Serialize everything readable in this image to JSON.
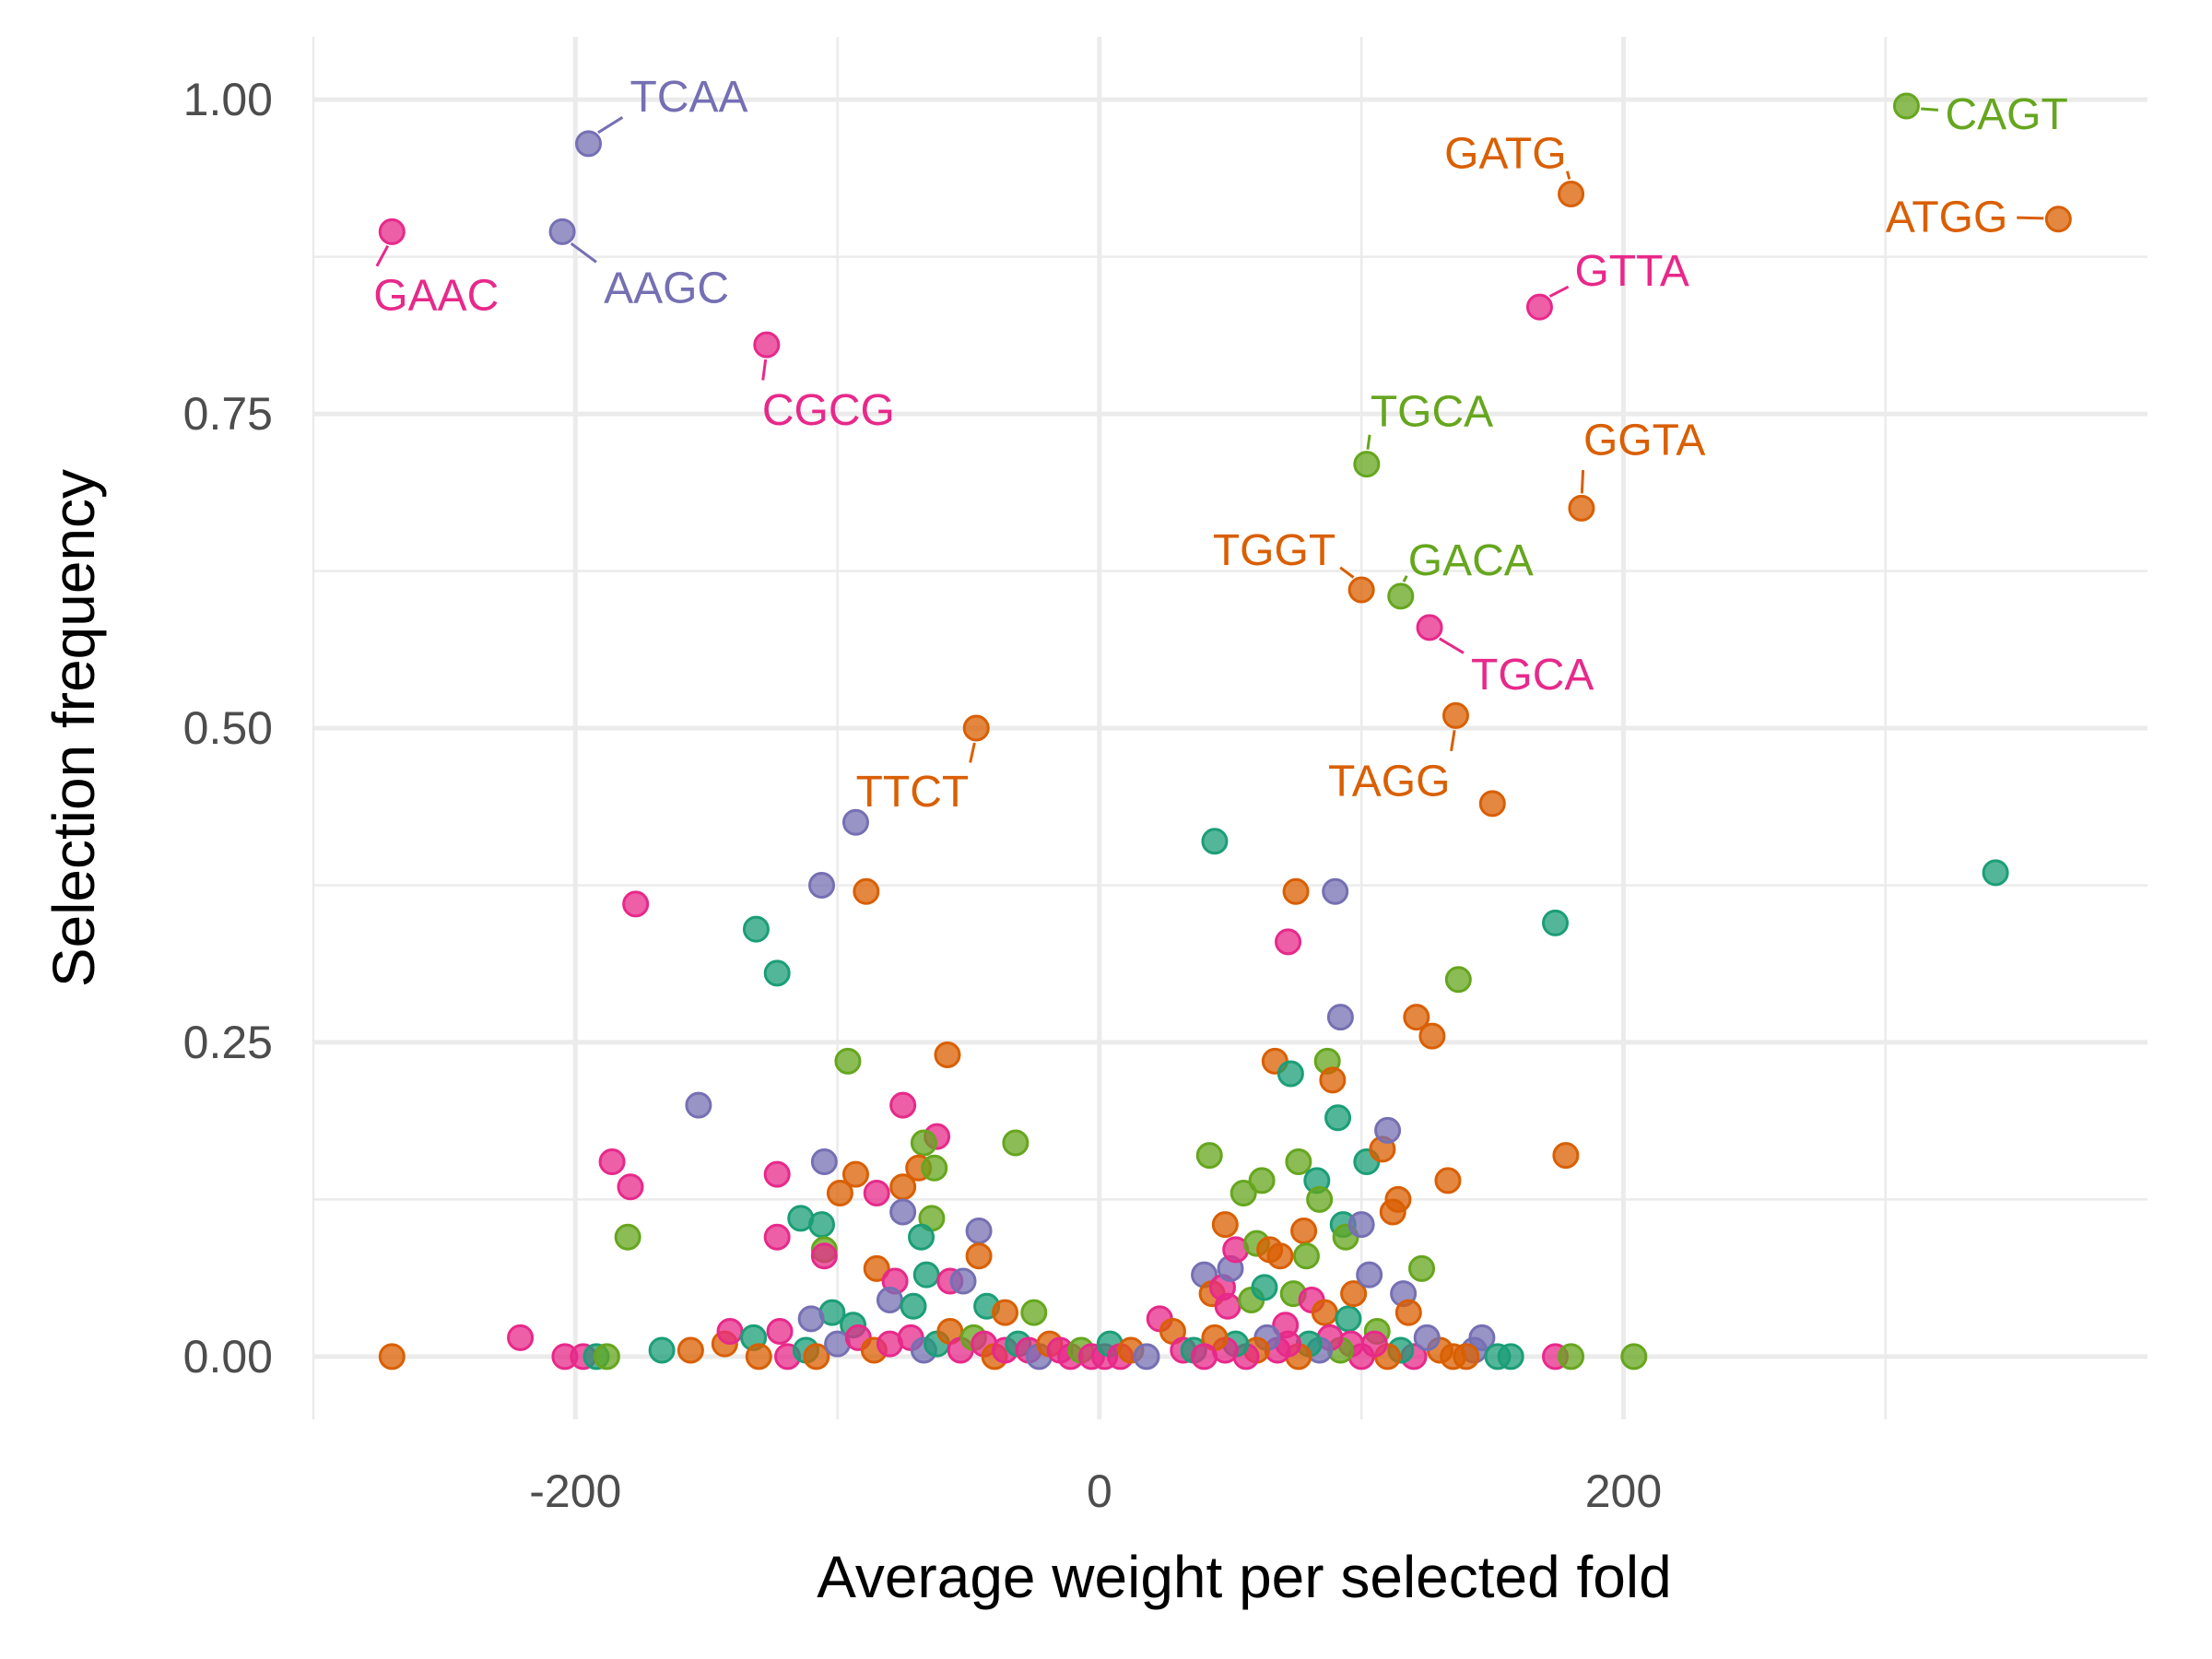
{
  "chart_data": {
    "type": "scatter",
    "title": "",
    "xlabel": "Average weight per selected fold",
    "ylabel": "Selection frequency",
    "xlim": [
      -300,
      400
    ],
    "ylim": [
      -0.05,
      1.05
    ],
    "x_ticks": [
      -200,
      0,
      200
    ],
    "x_tick_labels": [
      "-200",
      "0",
      "200"
    ],
    "y_ticks": [
      0,
      0.25,
      0.5,
      0.75,
      1
    ],
    "y_tick_labels": [
      "0.00",
      "0.25",
      "0.50",
      "0.75",
      "1.00"
    ],
    "grid": true,
    "legend": "none",
    "group_colors": {
      "teal": "#1b9e77",
      "orange": "#d95f02",
      "purple": "#7570b3",
      "pink": "#e7298a",
      "green": "#66a61e"
    },
    "labeled_points": [
      {
        "label": "TCAA",
        "x": -195,
        "y": 0.965,
        "group": "purple"
      },
      {
        "label": "AAGC",
        "x": -205,
        "y": 0.895,
        "group": "purple"
      },
      {
        "label": "GAAC",
        "x": -270,
        "y": 0.895,
        "group": "pink"
      },
      {
        "label": "CGCG",
        "x": -127,
        "y": 0.805,
        "group": "pink"
      },
      {
        "label": "TTCT",
        "x": -47,
        "y": 0.5,
        "group": "orange"
      },
      {
        "label": "GATG",
        "x": 180,
        "y": 0.925,
        "group": "orange"
      },
      {
        "label": "GTTA",
        "x": 168,
        "y": 0.835,
        "group": "pink"
      },
      {
        "label": "TGCA",
        "x": 102,
        "y": 0.71,
        "group": "green"
      },
      {
        "label": "GGTA",
        "x": 184,
        "y": 0.675,
        "group": "orange"
      },
      {
        "label": "TGGT",
        "x": 100,
        "y": 0.61,
        "group": "orange"
      },
      {
        "label": "GACA",
        "x": 115,
        "y": 0.605,
        "group": "green"
      },
      {
        "label": "TGCA",
        "x": 126,
        "y": 0.58,
        "group": "pink"
      },
      {
        "label": "TAGG",
        "x": 136,
        "y": 0.51,
        "group": "orange"
      },
      {
        "label": "CAGT",
        "x": 308,
        "y": 0.995,
        "group": "green"
      },
      {
        "label": "ATGG",
        "x": 366,
        "y": 0.905,
        "group": "orange"
      }
    ],
    "points": [
      {
        "x": -93,
        "y": 0.425,
        "group": "purple"
      },
      {
        "x": -89,
        "y": 0.37,
        "group": "orange"
      },
      {
        "x": -106,
        "y": 0.375,
        "group": "purple"
      },
      {
        "x": -177,
        "y": 0.36,
        "group": "pink"
      },
      {
        "x": -131,
        "y": 0.34,
        "group": "teal"
      },
      {
        "x": -123,
        "y": 0.305,
        "group": "teal"
      },
      {
        "x": -153,
        "y": 0.2,
        "group": "purple"
      },
      {
        "x": -96,
        "y": 0.235,
        "group": "green"
      },
      {
        "x": -58,
        "y": 0.24,
        "group": "orange"
      },
      {
        "x": -75,
        "y": 0.2,
        "group": "pink"
      },
      {
        "x": -62,
        "y": 0.175,
        "group": "pink"
      },
      {
        "x": -32,
        "y": 0.17,
        "group": "green"
      },
      {
        "x": -67,
        "y": 0.17,
        "group": "green"
      },
      {
        "x": -186,
        "y": 0.155,
        "group": "pink"
      },
      {
        "x": -179,
        "y": 0.135,
        "group": "pink"
      },
      {
        "x": -123,
        "y": 0.145,
        "group": "pink"
      },
      {
        "x": -105,
        "y": 0.155,
        "group": "purple"
      },
      {
        "x": -93,
        "y": 0.145,
        "group": "orange"
      },
      {
        "x": -99,
        "y": 0.13,
        "group": "orange"
      },
      {
        "x": -85,
        "y": 0.13,
        "group": "pink"
      },
      {
        "x": -75,
        "y": 0.135,
        "group": "orange"
      },
      {
        "x": -69,
        "y": 0.15,
        "group": "orange"
      },
      {
        "x": -63,
        "y": 0.15,
        "group": "green"
      },
      {
        "x": -75,
        "y": 0.115,
        "group": "purple"
      },
      {
        "x": -64,
        "y": 0.11,
        "group": "green"
      },
      {
        "x": -114,
        "y": 0.11,
        "group": "teal"
      },
      {
        "x": -106,
        "y": 0.105,
        "group": "teal"
      },
      {
        "x": -123,
        "y": 0.095,
        "group": "pink"
      },
      {
        "x": -105,
        "y": 0.085,
        "group": "green"
      },
      {
        "x": -105,
        "y": 0.08,
        "group": "pink"
      },
      {
        "x": -68,
        "y": 0.095,
        "group": "teal"
      },
      {
        "x": -46,
        "y": 0.1,
        "group": "purple"
      },
      {
        "x": -46,
        "y": 0.08,
        "group": "orange"
      },
      {
        "x": -85,
        "y": 0.07,
        "group": "orange"
      },
      {
        "x": -78,
        "y": 0.06,
        "group": "pink"
      },
      {
        "x": -66,
        "y": 0.065,
        "group": "teal"
      },
      {
        "x": -57,
        "y": 0.06,
        "group": "pink"
      },
      {
        "x": -52,
        "y": 0.06,
        "group": "purple"
      },
      {
        "x": -43,
        "y": 0.04,
        "group": "teal"
      },
      {
        "x": -80,
        "y": 0.045,
        "group": "purple"
      },
      {
        "x": -71,
        "y": 0.04,
        "group": "teal"
      },
      {
        "x": -36,
        "y": 0.035,
        "group": "orange"
      },
      {
        "x": -25,
        "y": 0.035,
        "group": "green"
      },
      {
        "x": -102,
        "y": 0.035,
        "group": "teal"
      },
      {
        "x": -110,
        "y": 0.03,
        "group": "purple"
      },
      {
        "x": -94,
        "y": 0.025,
        "group": "teal"
      },
      {
        "x": -180,
        "y": 0.095,
        "group": "green"
      },
      {
        "x": -221,
        "y": 0.015,
        "group": "pink"
      },
      {
        "x": -270,
        "y": 0.0,
        "group": "orange"
      },
      {
        "x": -204,
        "y": 0.0,
        "group": "pink"
      },
      {
        "x": -197,
        "y": 0.0,
        "group": "pink"
      },
      {
        "x": -192,
        "y": 0.0,
        "group": "teal"
      },
      {
        "x": -188,
        "y": 0.0,
        "group": "green"
      },
      {
        "x": -167,
        "y": 0.005,
        "group": "teal"
      },
      {
        "x": -156,
        "y": 0.005,
        "group": "orange"
      },
      {
        "x": -143,
        "y": 0.01,
        "group": "orange"
      },
      {
        "x": -141,
        "y": 0.02,
        "group": "pink"
      },
      {
        "x": -132,
        "y": 0.015,
        "group": "teal"
      },
      {
        "x": -130,
        "y": 0.0,
        "group": "orange"
      },
      {
        "x": -122,
        "y": 0.02,
        "group": "pink"
      },
      {
        "x": -119,
        "y": 0.0,
        "group": "pink"
      },
      {
        "x": -112,
        "y": 0.005,
        "group": "teal"
      },
      {
        "x": -108,
        "y": 0.0,
        "group": "orange"
      },
      {
        "x": -100,
        "y": 0.01,
        "group": "purple"
      },
      {
        "x": -92,
        "y": 0.015,
        "group": "pink"
      },
      {
        "x": -86,
        "y": 0.005,
        "group": "orange"
      },
      {
        "x": -80,
        "y": 0.01,
        "group": "pink"
      },
      {
        "x": -72,
        "y": 0.015,
        "group": "pink"
      },
      {
        "x": -67,
        "y": 0.005,
        "group": "purple"
      },
      {
        "x": -62,
        "y": 0.01,
        "group": "teal"
      },
      {
        "x": -57,
        "y": 0.02,
        "group": "orange"
      },
      {
        "x": -53,
        "y": 0.005,
        "group": "pink"
      },
      {
        "x": -48,
        "y": 0.015,
        "group": "green"
      },
      {
        "x": -44,
        "y": 0.01,
        "group": "pink"
      },
      {
        "x": -40,
        "y": 0.0,
        "group": "orange"
      },
      {
        "x": -36,
        "y": 0.005,
        "group": "pink"
      },
      {
        "x": -31,
        "y": 0.01,
        "group": "teal"
      },
      {
        "x": -27,
        "y": 0.005,
        "group": "pink"
      },
      {
        "x": -23,
        "y": 0.0,
        "group": "purple"
      },
      {
        "x": -19,
        "y": 0.01,
        "group": "orange"
      },
      {
        "x": -15,
        "y": 0.005,
        "group": "pink"
      },
      {
        "x": -11,
        "y": 0.0,
        "group": "pink"
      },
      {
        "x": -7,
        "y": 0.005,
        "group": "green"
      },
      {
        "x": -3,
        "y": 0.0,
        "group": "pink"
      },
      {
        "x": 2,
        "y": 0.0,
        "group": "pink"
      },
      {
        "x": 4,
        "y": 0.01,
        "group": "teal"
      },
      {
        "x": 8,
        "y": 0.0,
        "group": "pink"
      },
      {
        "x": 12,
        "y": 0.005,
        "group": "orange"
      },
      {
        "x": 18,
        "y": 0.0,
        "group": "purple"
      },
      {
        "x": 23,
        "y": 0.03,
        "group": "pink"
      },
      {
        "x": 28,
        "y": 0.02,
        "group": "orange"
      },
      {
        "x": 32,
        "y": 0.005,
        "group": "pink"
      },
      {
        "x": 36,
        "y": 0.005,
        "group": "teal"
      },
      {
        "x": 40,
        "y": 0.065,
        "group": "purple"
      },
      {
        "x": 42,
        "y": 0.16,
        "group": "green"
      },
      {
        "x": 44,
        "y": 0.41,
        "group": "teal"
      },
      {
        "x": 43,
        "y": 0.05,
        "group": "orange"
      },
      {
        "x": 47,
        "y": 0.055,
        "group": "pink"
      },
      {
        "x": 49,
        "y": 0.04,
        "group": "pink"
      },
      {
        "x": 50,
        "y": 0.07,
        "group": "purple"
      },
      {
        "x": 52,
        "y": 0.085,
        "group": "pink"
      },
      {
        "x": 48,
        "y": 0.105,
        "group": "orange"
      },
      {
        "x": 55,
        "y": 0.13,
        "group": "green"
      },
      {
        "x": 58,
        "y": 0.045,
        "group": "green"
      },
      {
        "x": 60,
        "y": 0.09,
        "group": "green"
      },
      {
        "x": 62,
        "y": 0.14,
        "group": "green"
      },
      {
        "x": 63,
        "y": 0.055,
        "group": "teal"
      },
      {
        "x": 65,
        "y": 0.085,
        "group": "orange"
      },
      {
        "x": 67,
        "y": 0.235,
        "group": "orange"
      },
      {
        "x": 69,
        "y": 0.08,
        "group": "orange"
      },
      {
        "x": 71,
        "y": 0.025,
        "group": "pink"
      },
      {
        "x": 72,
        "y": 0.33,
        "group": "pink"
      },
      {
        "x": 73,
        "y": 0.225,
        "group": "teal"
      },
      {
        "x": 74,
        "y": 0.05,
        "group": "green"
      },
      {
        "x": 75,
        "y": 0.37,
        "group": "orange"
      },
      {
        "x": 76,
        "y": 0.155,
        "group": "green"
      },
      {
        "x": 78,
        "y": 0.1,
        "group": "orange"
      },
      {
        "x": 79,
        "y": 0.08,
        "group": "green"
      },
      {
        "x": 81,
        "y": 0.045,
        "group": "pink"
      },
      {
        "x": 83,
        "y": 0.14,
        "group": "teal"
      },
      {
        "x": 84,
        "y": 0.125,
        "group": "green"
      },
      {
        "x": 86,
        "y": 0.035,
        "group": "orange"
      },
      {
        "x": 87,
        "y": 0.235,
        "group": "green"
      },
      {
        "x": 89,
        "y": 0.22,
        "group": "orange"
      },
      {
        "x": 90,
        "y": 0.37,
        "group": "purple"
      },
      {
        "x": 91,
        "y": 0.19,
        "group": "teal"
      },
      {
        "x": 92,
        "y": 0.27,
        "group": "purple"
      },
      {
        "x": 93,
        "y": 0.105,
        "group": "teal"
      },
      {
        "x": 94,
        "y": 0.095,
        "group": "green"
      },
      {
        "x": 95,
        "y": 0.03,
        "group": "teal"
      },
      {
        "x": 97,
        "y": 0.05,
        "group": "orange"
      },
      {
        "x": 100,
        "y": 0.105,
        "group": "purple"
      },
      {
        "x": 102,
        "y": 0.155,
        "group": "teal"
      },
      {
        "x": 103,
        "y": 0.065,
        "group": "purple"
      },
      {
        "x": 106,
        "y": 0.02,
        "group": "green"
      },
      {
        "x": 108,
        "y": 0.165,
        "group": "orange"
      },
      {
        "x": 110,
        "y": 0.18,
        "group": "purple"
      },
      {
        "x": 112,
        "y": 0.115,
        "group": "orange"
      },
      {
        "x": 114,
        "y": 0.125,
        "group": "orange"
      },
      {
        "x": 116,
        "y": 0.05,
        "group": "purple"
      },
      {
        "x": 118,
        "y": 0.035,
        "group": "orange"
      },
      {
        "x": 121,
        "y": 0.27,
        "group": "orange"
      },
      {
        "x": 123,
        "y": 0.07,
        "group": "green"
      },
      {
        "x": 127,
        "y": 0.255,
        "group": "orange"
      },
      {
        "x": 133,
        "y": 0.14,
        "group": "orange"
      },
      {
        "x": 137,
        "y": 0.3,
        "group": "green"
      },
      {
        "x": 143,
        "y": 0.005,
        "group": "purple"
      },
      {
        "x": 146,
        "y": 0.015,
        "group": "purple"
      },
      {
        "x": 150,
        "y": 0.44,
        "group": "orange"
      },
      {
        "x": 152,
        "y": 0.0,
        "group": "teal"
      },
      {
        "x": 157,
        "y": 0.0,
        "group": "teal"
      },
      {
        "x": 174,
        "y": 0.345,
        "group": "teal"
      },
      {
        "x": 174,
        "y": 0.0,
        "group": "pink"
      },
      {
        "x": 178,
        "y": 0.16,
        "group": "orange"
      },
      {
        "x": 180,
        "y": 0.0,
        "group": "green"
      },
      {
        "x": 204,
        "y": 0.0,
        "group": "green"
      },
      {
        "x": 342,
        "y": 0.385,
        "group": "teal"
      },
      {
        "x": 120,
        "y": 0.0,
        "group": "pink"
      },
      {
        "x": 115,
        "y": 0.005,
        "group": "teal"
      },
      {
        "x": 110,
        "y": 0.0,
        "group": "orange"
      },
      {
        "x": 105,
        "y": 0.01,
        "group": "pink"
      },
      {
        "x": 100,
        "y": 0.0,
        "group": "pink"
      },
      {
        "x": 96,
        "y": 0.01,
        "group": "pink"
      },
      {
        "x": 92,
        "y": 0.005,
        "group": "green"
      },
      {
        "x": 88,
        "y": 0.015,
        "group": "pink"
      },
      {
        "x": 84,
        "y": 0.005,
        "group": "purple"
      },
      {
        "x": 80,
        "y": 0.01,
        "group": "teal"
      },
      {
        "x": 76,
        "y": 0.0,
        "group": "orange"
      },
      {
        "x": 72,
        "y": 0.01,
        "group": "pink"
      },
      {
        "x": 68,
        "y": 0.005,
        "group": "pink"
      },
      {
        "x": 64,
        "y": 0.015,
        "group": "purple"
      },
      {
        "x": 60,
        "y": 0.005,
        "group": "orange"
      },
      {
        "x": 56,
        "y": 0.0,
        "group": "pink"
      },
      {
        "x": 52,
        "y": 0.01,
        "group": "teal"
      },
      {
        "x": 48,
        "y": 0.005,
        "group": "pink"
      },
      {
        "x": 44,
        "y": 0.015,
        "group": "orange"
      },
      {
        "x": 40,
        "y": 0.0,
        "group": "pink"
      },
      {
        "x": 130,
        "y": 0.005,
        "group": "orange"
      },
      {
        "x": 135,
        "y": 0.0,
        "group": "orange"
      },
      {
        "x": 140,
        "y": 0.0,
        "group": "orange"
      },
      {
        "x": 125,
        "y": 0.015,
        "group": "purple"
      }
    ]
  }
}
